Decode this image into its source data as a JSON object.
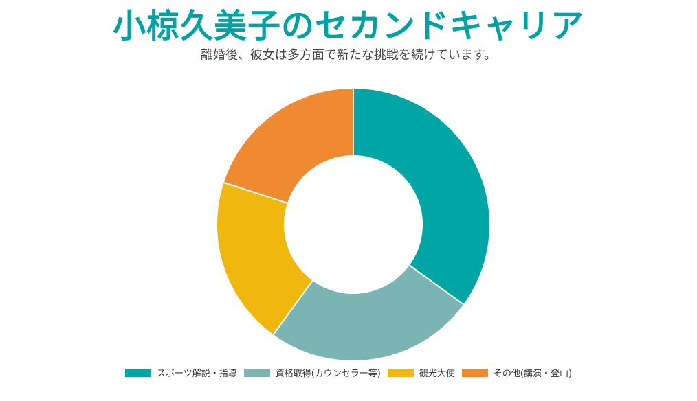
{
  "title": "小椋久美子のセカンドキャリア",
  "subtitle": "離婚後、彼女は多方面で新たな挑戦を続けています。",
  "title_color": "#00A3A3",
  "chart_data": {
    "type": "pie",
    "donut": true,
    "title": "小椋久美子のセカンドキャリア",
    "subtitle": "離婚後、彼女は多方面で新たな挑戦を続けています。",
    "legend_position": "bottom",
    "categories": [
      "スポーツ解説・指導",
      "資格取得(カウンセラー等)",
      "観光大使",
      "その他(講演・登山)"
    ],
    "values": [
      35,
      25,
      20,
      20
    ],
    "colors": [
      "#00A6A6",
      "#7AB5B3",
      "#F0B70F",
      "#F08A30"
    ]
  }
}
